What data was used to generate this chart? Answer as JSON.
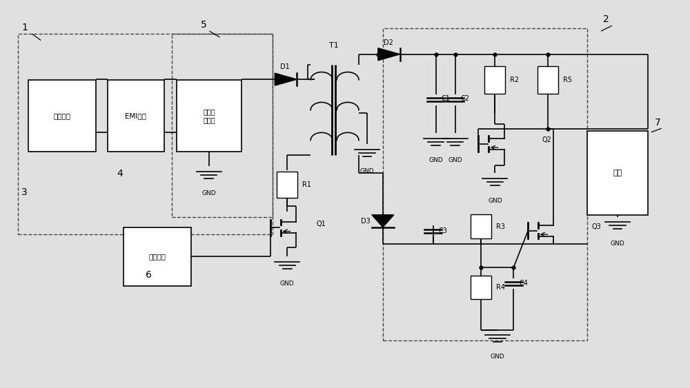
{
  "background_color": "#e0e0e0",
  "figsize": [
    10.0,
    5.63
  ],
  "dpi": 100,
  "box_input": "输入电源",
  "box_emi": "EMI电路",
  "box_bridge": "桥式整\n流电路",
  "box_drive": "驱动信号",
  "box_load": "负载"
}
